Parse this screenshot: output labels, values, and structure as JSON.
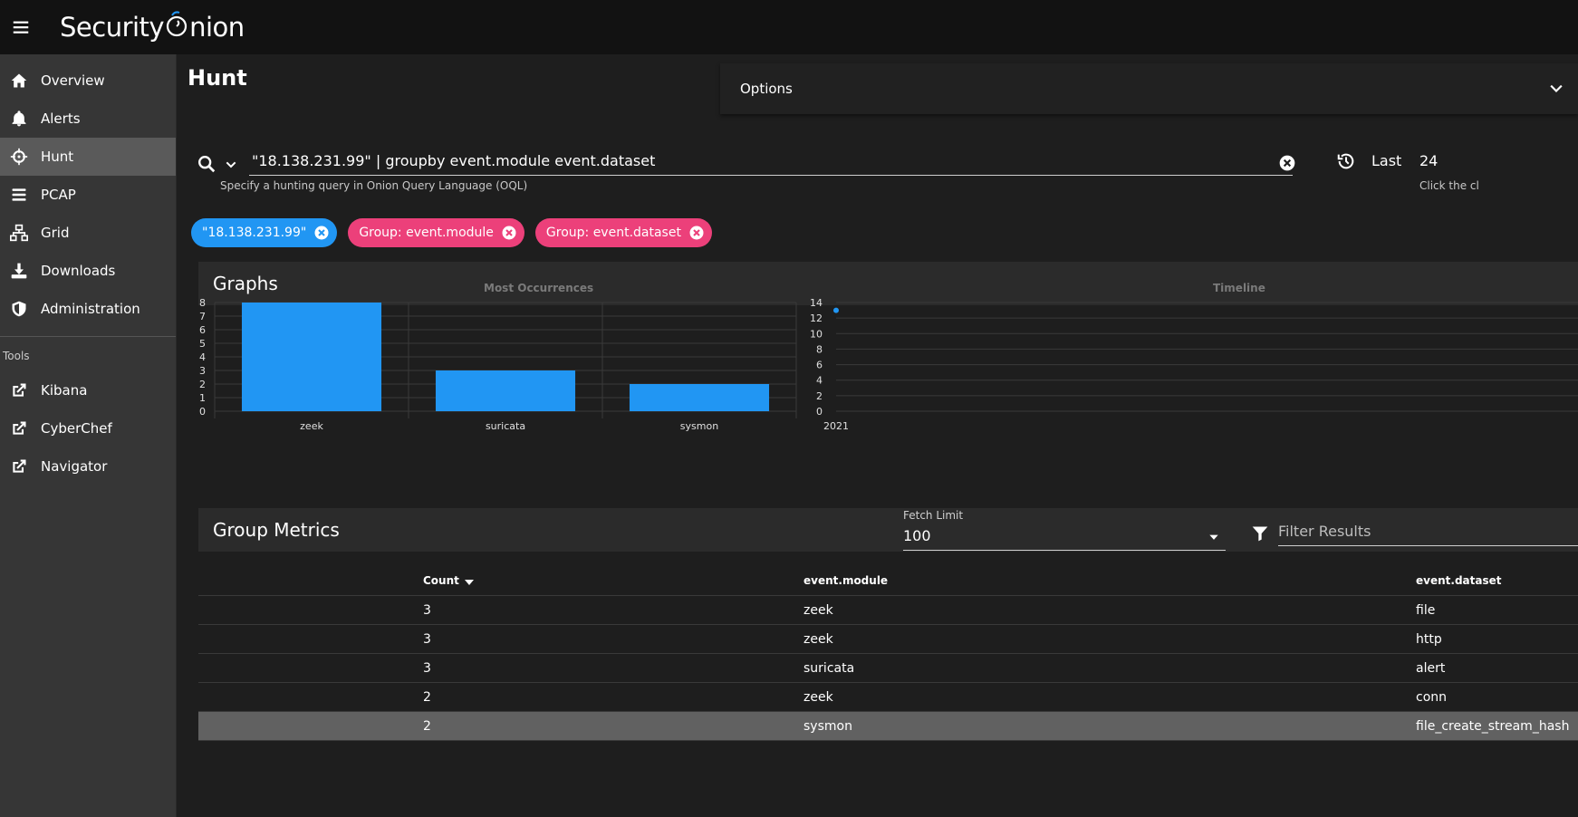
{
  "app": {
    "logo_text_left": "Security",
    "logo_text_right": "nion"
  },
  "sidebar": {
    "items": [
      {
        "label": "Overview",
        "icon": "home-icon"
      },
      {
        "label": "Alerts",
        "icon": "bell-icon"
      },
      {
        "label": "Hunt",
        "icon": "crosshairs-icon",
        "active": true
      },
      {
        "label": "PCAP",
        "icon": "list-icon"
      },
      {
        "label": "Grid",
        "icon": "sitemap-icon"
      },
      {
        "label": "Downloads",
        "icon": "download-icon"
      },
      {
        "label": "Administration",
        "icon": "shield-icon"
      }
    ],
    "tools_header": "Tools",
    "tools": [
      {
        "label": "Kibana",
        "icon": "external-link-icon"
      },
      {
        "label": "CyberChef",
        "icon": "external-link-icon"
      },
      {
        "label": "Navigator",
        "icon": "external-link-icon"
      }
    ]
  },
  "header": {
    "title": "Hunt",
    "options_label": "Options"
  },
  "search": {
    "query": "\"18.138.231.99\" | groupby event.module event.dataset",
    "hint": "Specify a hunting query in Onion Query Language (OQL)",
    "last_label": "Last",
    "last_value": "24",
    "last_hint": "Click the cl"
  },
  "chips": [
    {
      "label": "\"18.138.231.99\"",
      "color": "#2196f3"
    },
    {
      "label": "Group: event.module",
      "color": "#ec407a"
    },
    {
      "label": "Group: event.dataset",
      "color": "#ec407a"
    }
  ],
  "graphs": {
    "header": "Graphs"
  },
  "chart_data": [
    {
      "type": "bar",
      "title": "Most Occurrences",
      "categories": [
        "zeek",
        "suricata",
        "sysmon"
      ],
      "values": [
        8,
        3,
        2
      ],
      "ylim": [
        0,
        8
      ],
      "yticks": [
        0,
        1,
        2,
        3,
        4,
        5,
        6,
        7,
        8
      ],
      "color": "#2196f3",
      "grid": true
    },
    {
      "type": "scatter",
      "title": "Timeline",
      "x": [
        "2021"
      ],
      "values": [
        13
      ],
      "ylim": [
        0,
        14
      ],
      "yticks": [
        0,
        2,
        4,
        6,
        8,
        10,
        12,
        14
      ],
      "xtick_labels": [
        "2021"
      ],
      "color": "#2196f3",
      "grid": true
    }
  ],
  "metrics": {
    "header": "Group Metrics",
    "fetch_limit_label": "Fetch Limit",
    "fetch_limit_value": "100",
    "filter_placeholder": "Filter Results",
    "columns": [
      "Count",
      "event.module",
      "event.dataset"
    ],
    "rows": [
      {
        "count": "3",
        "module": "zeek",
        "dataset": "file"
      },
      {
        "count": "3",
        "module": "zeek",
        "dataset": "http"
      },
      {
        "count": "3",
        "module": "suricata",
        "dataset": "alert"
      },
      {
        "count": "2",
        "module": "zeek",
        "dataset": "conn"
      },
      {
        "count": "2",
        "module": "sysmon",
        "dataset": "file_create_stream_hash",
        "selected": true
      }
    ]
  }
}
